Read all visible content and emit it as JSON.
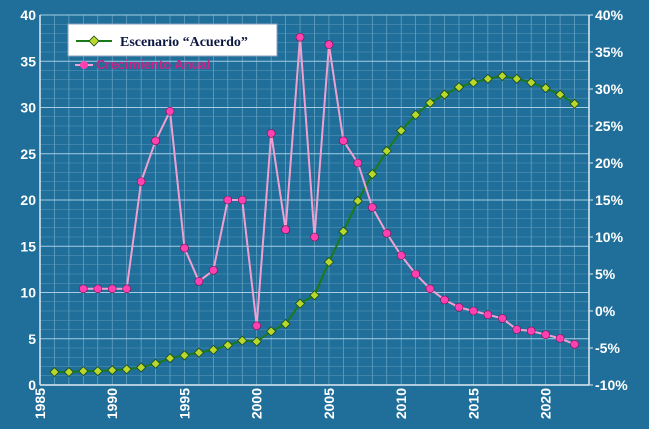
{
  "chart_data": {
    "type": "line",
    "title": "",
    "xlim": [
      1985,
      2023
    ],
    "ylim_left": [
      0,
      40
    ],
    "ylim_right": [
      -10,
      40
    ],
    "x_ticks": [
      "1985",
      "1990",
      "1995",
      "2000",
      "2005",
      "2010",
      "2015",
      "2020"
    ],
    "y_left_ticks": [
      "0",
      "5",
      "10",
      "15",
      "20",
      "25",
      "30",
      "35",
      "40"
    ],
    "y_right_ticks": [
      "-10%",
      "-5%",
      "0%",
      "5%",
      "10%",
      "15%",
      "20%",
      "25%",
      "30%",
      "35%",
      "40%"
    ],
    "grid": true,
    "legend_position": "top-left",
    "series": [
      {
        "name": "Escenario “Acuerdo”",
        "axis": "left",
        "color": "#1a7a1a",
        "marker_color": "#b8d82c",
        "x": [
          1986,
          1987,
          1988,
          1989,
          1990,
          1991,
          1992,
          1993,
          1994,
          1995,
          1996,
          1997,
          1998,
          1999,
          2000,
          2001,
          2002,
          2003,
          2004,
          2005,
          2006,
          2007,
          2008,
          2009,
          2010,
          2011,
          2012,
          2013,
          2014,
          2015,
          2016,
          2017,
          2018,
          2019,
          2020,
          2021,
          2022
        ],
        "values": [
          1.4,
          1.4,
          1.5,
          1.5,
          1.6,
          1.7,
          1.9,
          2.3,
          2.9,
          3.2,
          3.5,
          3.8,
          4.3,
          4.8,
          4.7,
          5.8,
          6.6,
          8.8,
          9.7,
          13.3,
          16.6,
          19.9,
          22.8,
          25.3,
          27.5,
          29.2,
          30.5,
          31.4,
          32.2,
          32.7,
          33.1,
          33.4,
          33.1,
          32.7,
          32.1,
          31.4,
          30.4
        ]
      },
      {
        "name": "Crecimiento Anual",
        "axis": "right",
        "color": "#f0a0d0",
        "marker_color": "#ff40b0",
        "x": [
          1988,
          1989,
          1990,
          1991,
          1992,
          1993,
          1994,
          1995,
          1996,
          1997,
          1998,
          1999,
          2000,
          2001,
          2002,
          2003,
          2004,
          2005,
          2006,
          2007,
          2008,
          2009,
          2010,
          2011,
          2012,
          2013,
          2014,
          2015,
          2016,
          2017,
          2018,
          2019,
          2020,
          2021,
          2022
        ],
        "values": [
          3,
          3,
          3,
          3,
          17.5,
          23,
          27,
          8.5,
          4,
          5.5,
          15,
          15,
          -2,
          24,
          11,
          37,
          10,
          36,
          23,
          20,
          14,
          10.5,
          7.5,
          5,
          3,
          1.5,
          0.5,
          0,
          -0.5,
          -1,
          -2.5,
          -2.7,
          -3.2,
          -3.7,
          -4.5
        ]
      }
    ]
  },
  "legend": {
    "series1_label": "Escenario “Acuerdo”",
    "series2_label": "Crecimiento Anual"
  }
}
